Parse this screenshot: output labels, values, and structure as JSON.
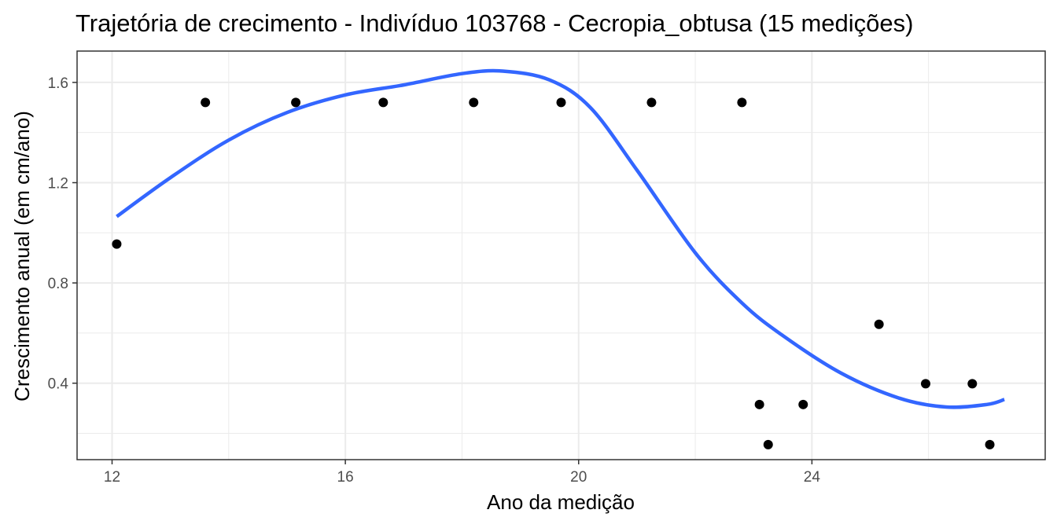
{
  "chart_data": {
    "type": "scatter",
    "title": "Trajetória de crecimento - Indivíduo 103768 - Cecropia_obtusa (15 medições)",
    "xlabel": "Ano da medição",
    "ylabel": "Crescimento anual (em cm/ano)",
    "xlim": [
      11.4,
      28.0
    ],
    "ylim": [
      0.095,
      1.725
    ],
    "x_ticks": [
      12,
      16,
      20,
      24
    ],
    "y_ticks": [
      0.4,
      0.8,
      1.2,
      1.6
    ],
    "x_tick_labels": [
      "12",
      "16",
      "20",
      "24"
    ],
    "y_tick_labels": [
      "0.4",
      "0.8",
      "1.2",
      "1.6"
    ],
    "grid": true,
    "colors": {
      "points": "#000000",
      "smooth": "#3366ff",
      "grid": "#ebebeb",
      "panel_border": "#333333"
    },
    "series": [
      {
        "kind": "points",
        "x": [
          12.08,
          13.6,
          15.15,
          16.65,
          18.2,
          19.7,
          21.25,
          22.8,
          23.1,
          23.25,
          23.85,
          25.15,
          25.95,
          26.75,
          27.05
        ],
        "y": [
          0.955,
          1.52,
          1.52,
          1.52,
          1.52,
          1.52,
          1.52,
          1.52,
          0.315,
          0.155,
          0.315,
          0.635,
          0.398,
          0.398,
          0.155
        ]
      },
      {
        "kind": "smooth",
        "x": [
          12.08,
          13.0,
          14.0,
          15.0,
          16.0,
          17.0,
          18.0,
          18.7,
          19.5,
          20.2,
          21.0,
          22.0,
          22.8,
          23.5,
          24.5,
          25.5,
          26.3,
          27.0,
          27.3
        ],
        "y": [
          1.065,
          1.22,
          1.37,
          1.48,
          1.55,
          1.59,
          1.635,
          1.645,
          1.61,
          1.5,
          1.25,
          0.92,
          0.72,
          0.59,
          0.44,
          0.34,
          0.305,
          0.315,
          0.335
        ]
      }
    ]
  }
}
